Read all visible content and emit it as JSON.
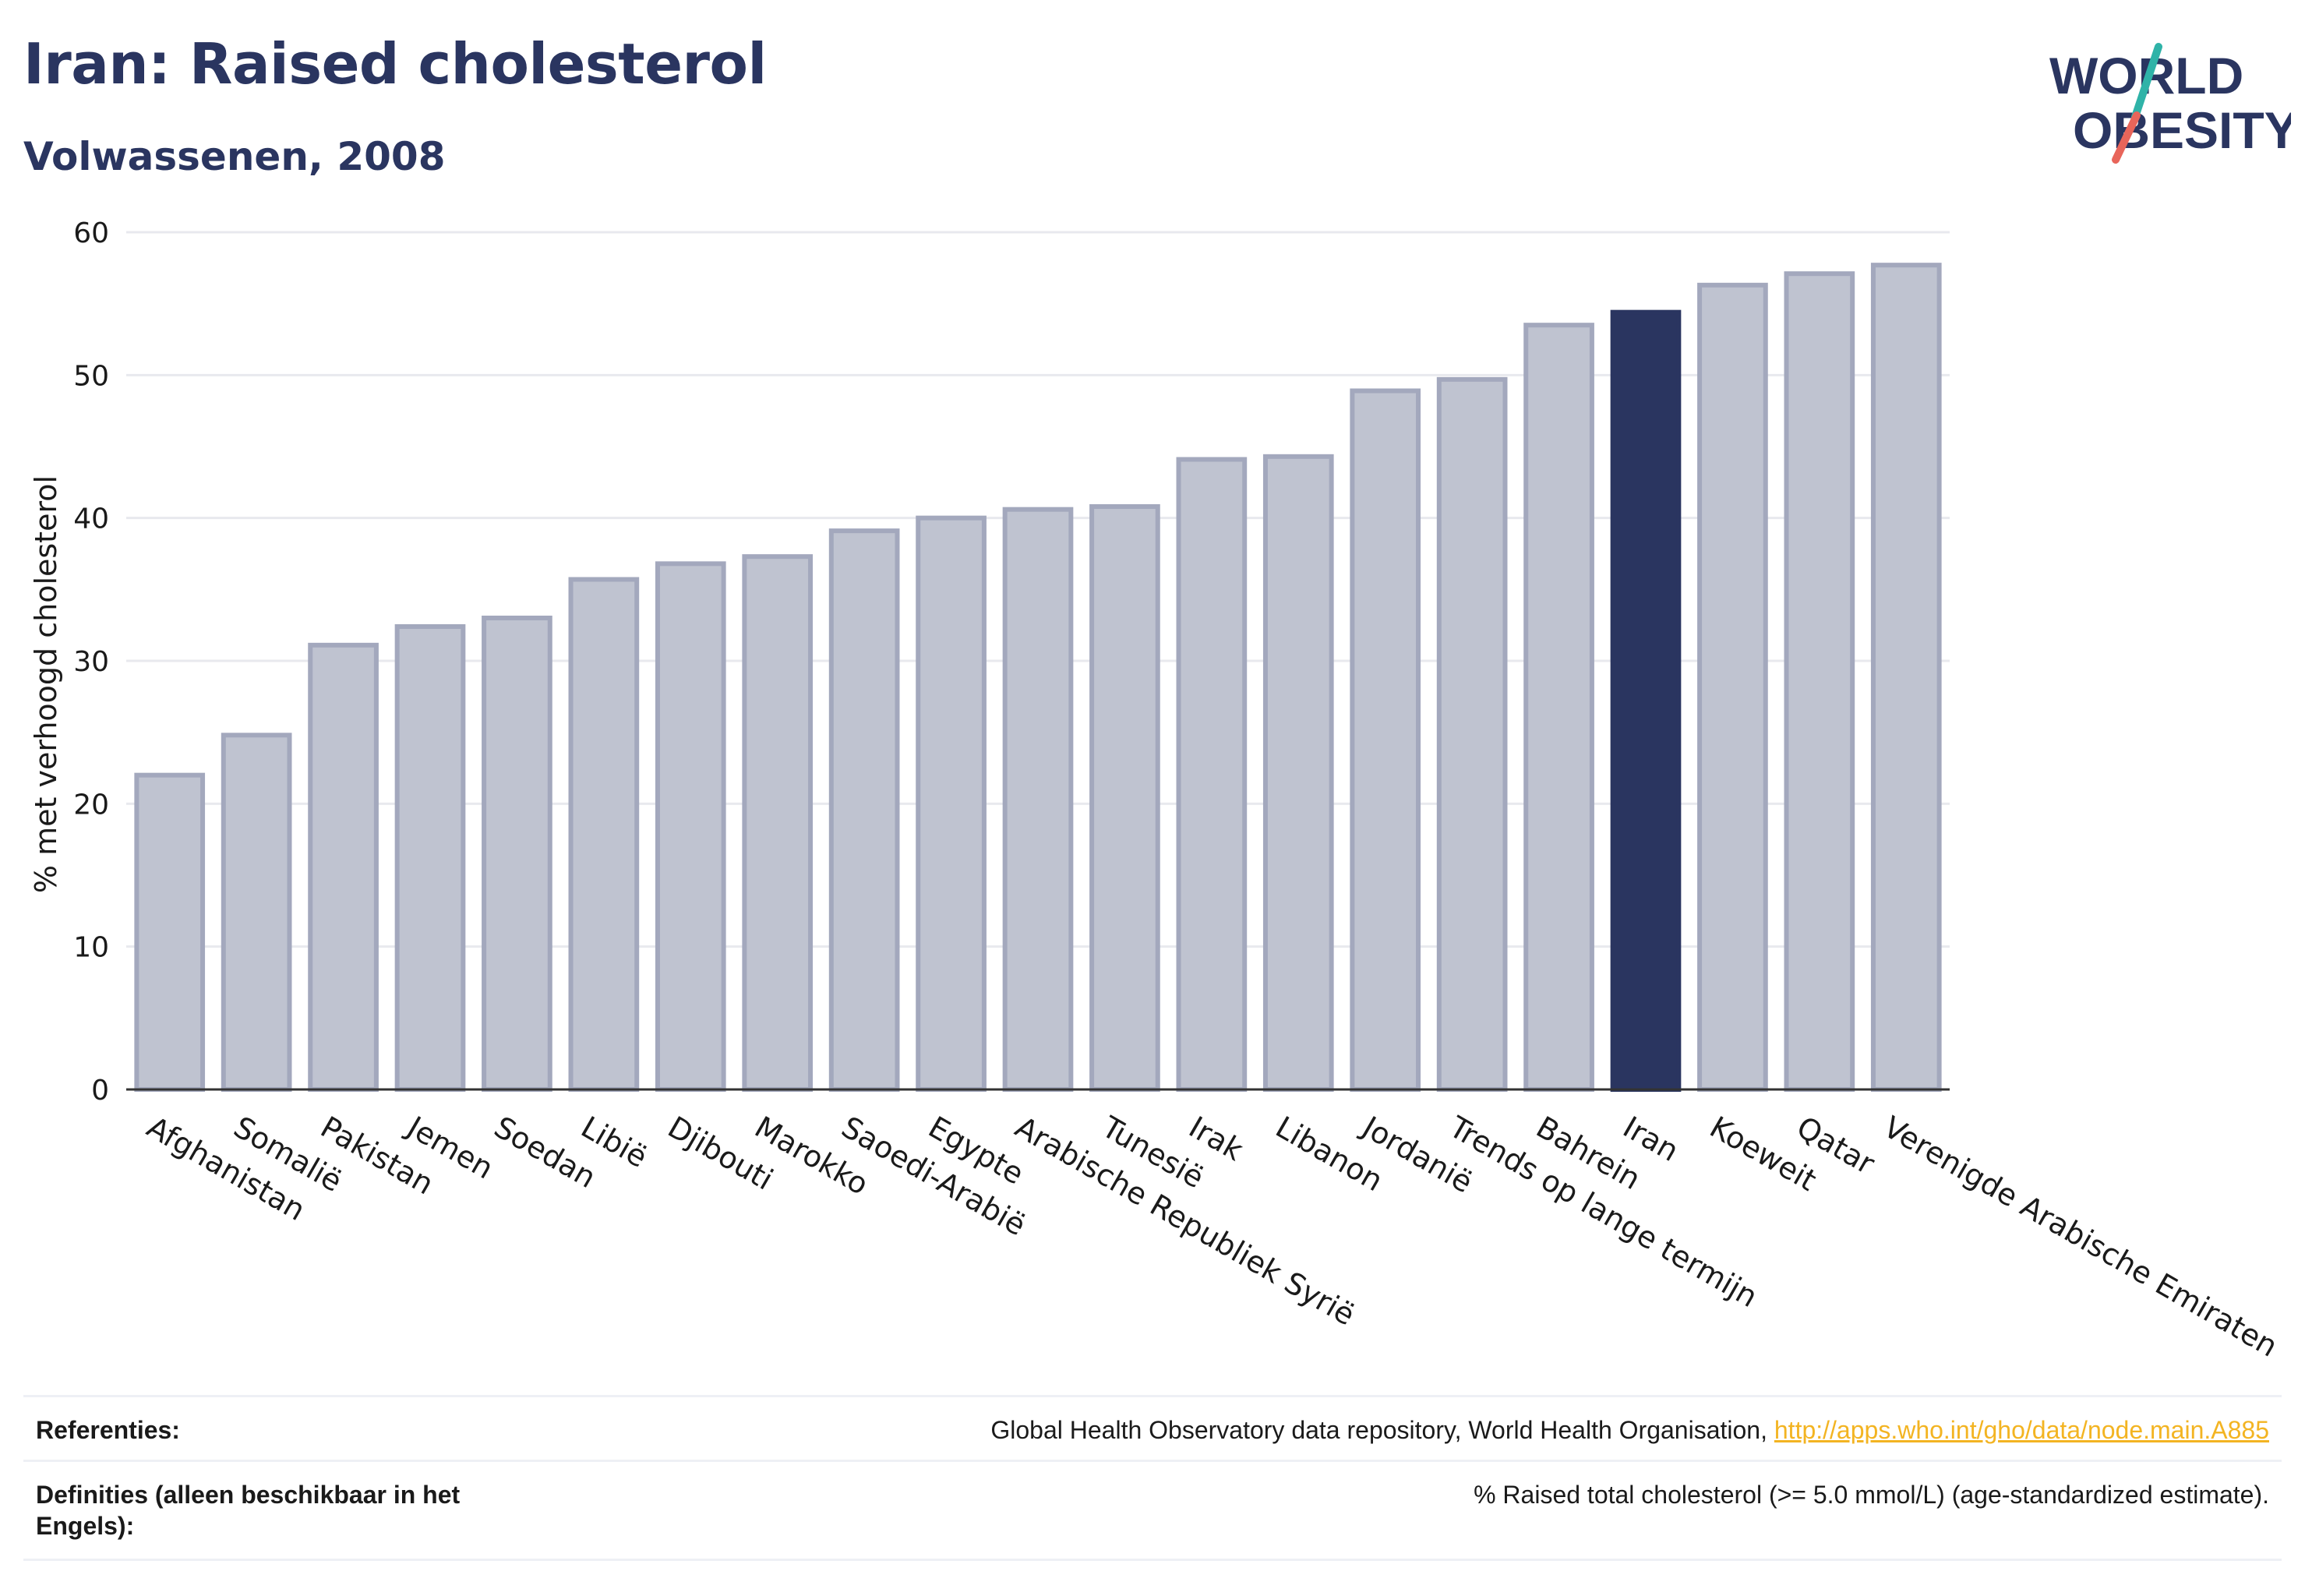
{
  "header": {
    "title": "Iran: Raised cholesterol",
    "subtitle": "Volwassenen, 2008"
  },
  "logo": {
    "line1": "WORLD",
    "line2": "OBESITY",
    "colors": {
      "text": "#2a3560",
      "slash_top": "#2fb3a8",
      "slash_bottom": "#e8655a"
    }
  },
  "colors": {
    "bar_fill": "#bfc3d0",
    "bar_stroke": "#a3a8bd",
    "highlight": "#2a3560",
    "grid": "#e8e9ee",
    "axis": "#333333"
  },
  "chart_data": {
    "type": "bar",
    "title": "Iran: Raised cholesterol",
    "subtitle": "Volwassenen, 2008",
    "xlabel": "",
    "ylabel": "% met verhoogd cholesterol",
    "ylim": [
      0,
      60
    ],
    "yticks": [
      0,
      10,
      20,
      30,
      40,
      50,
      60
    ],
    "grid": true,
    "categories": [
      "Afghanistan",
      "Somalië",
      "Pakistan",
      "Jemen",
      "Soedan",
      "Libië",
      "Djibouti",
      "Marokko",
      "Saoedi-Arabië",
      "Egypte",
      "Arabische Republiek Syrië",
      "Tunesië",
      "Irak",
      "Libanon",
      "Jordanië",
      "Trends op lange termijn",
      "Bahrein",
      "Iran",
      "Koeweit",
      "Qatar",
      "Verenigde Arabische Emiraten"
    ],
    "values": [
      22.0,
      24.8,
      31.1,
      32.4,
      33.0,
      35.7,
      36.8,
      37.3,
      39.1,
      40.0,
      40.6,
      40.8,
      44.1,
      44.3,
      48.9,
      49.7,
      53.5,
      54.4,
      56.3,
      57.1,
      57.7
    ],
    "highlight": "Iran"
  },
  "footer": {
    "references_label": "Referenties:",
    "references_text": "Global Health Observatory data repository, World Health Organisation, ",
    "references_link": "http://apps.who.int/gho/data/node.main.A885",
    "definitions_label": "Definities (alleen beschikbaar in het Engels):",
    "definitions_text": "% Raised total cholesterol (>= 5.0 mmol/L) (age-standardized estimate)."
  }
}
